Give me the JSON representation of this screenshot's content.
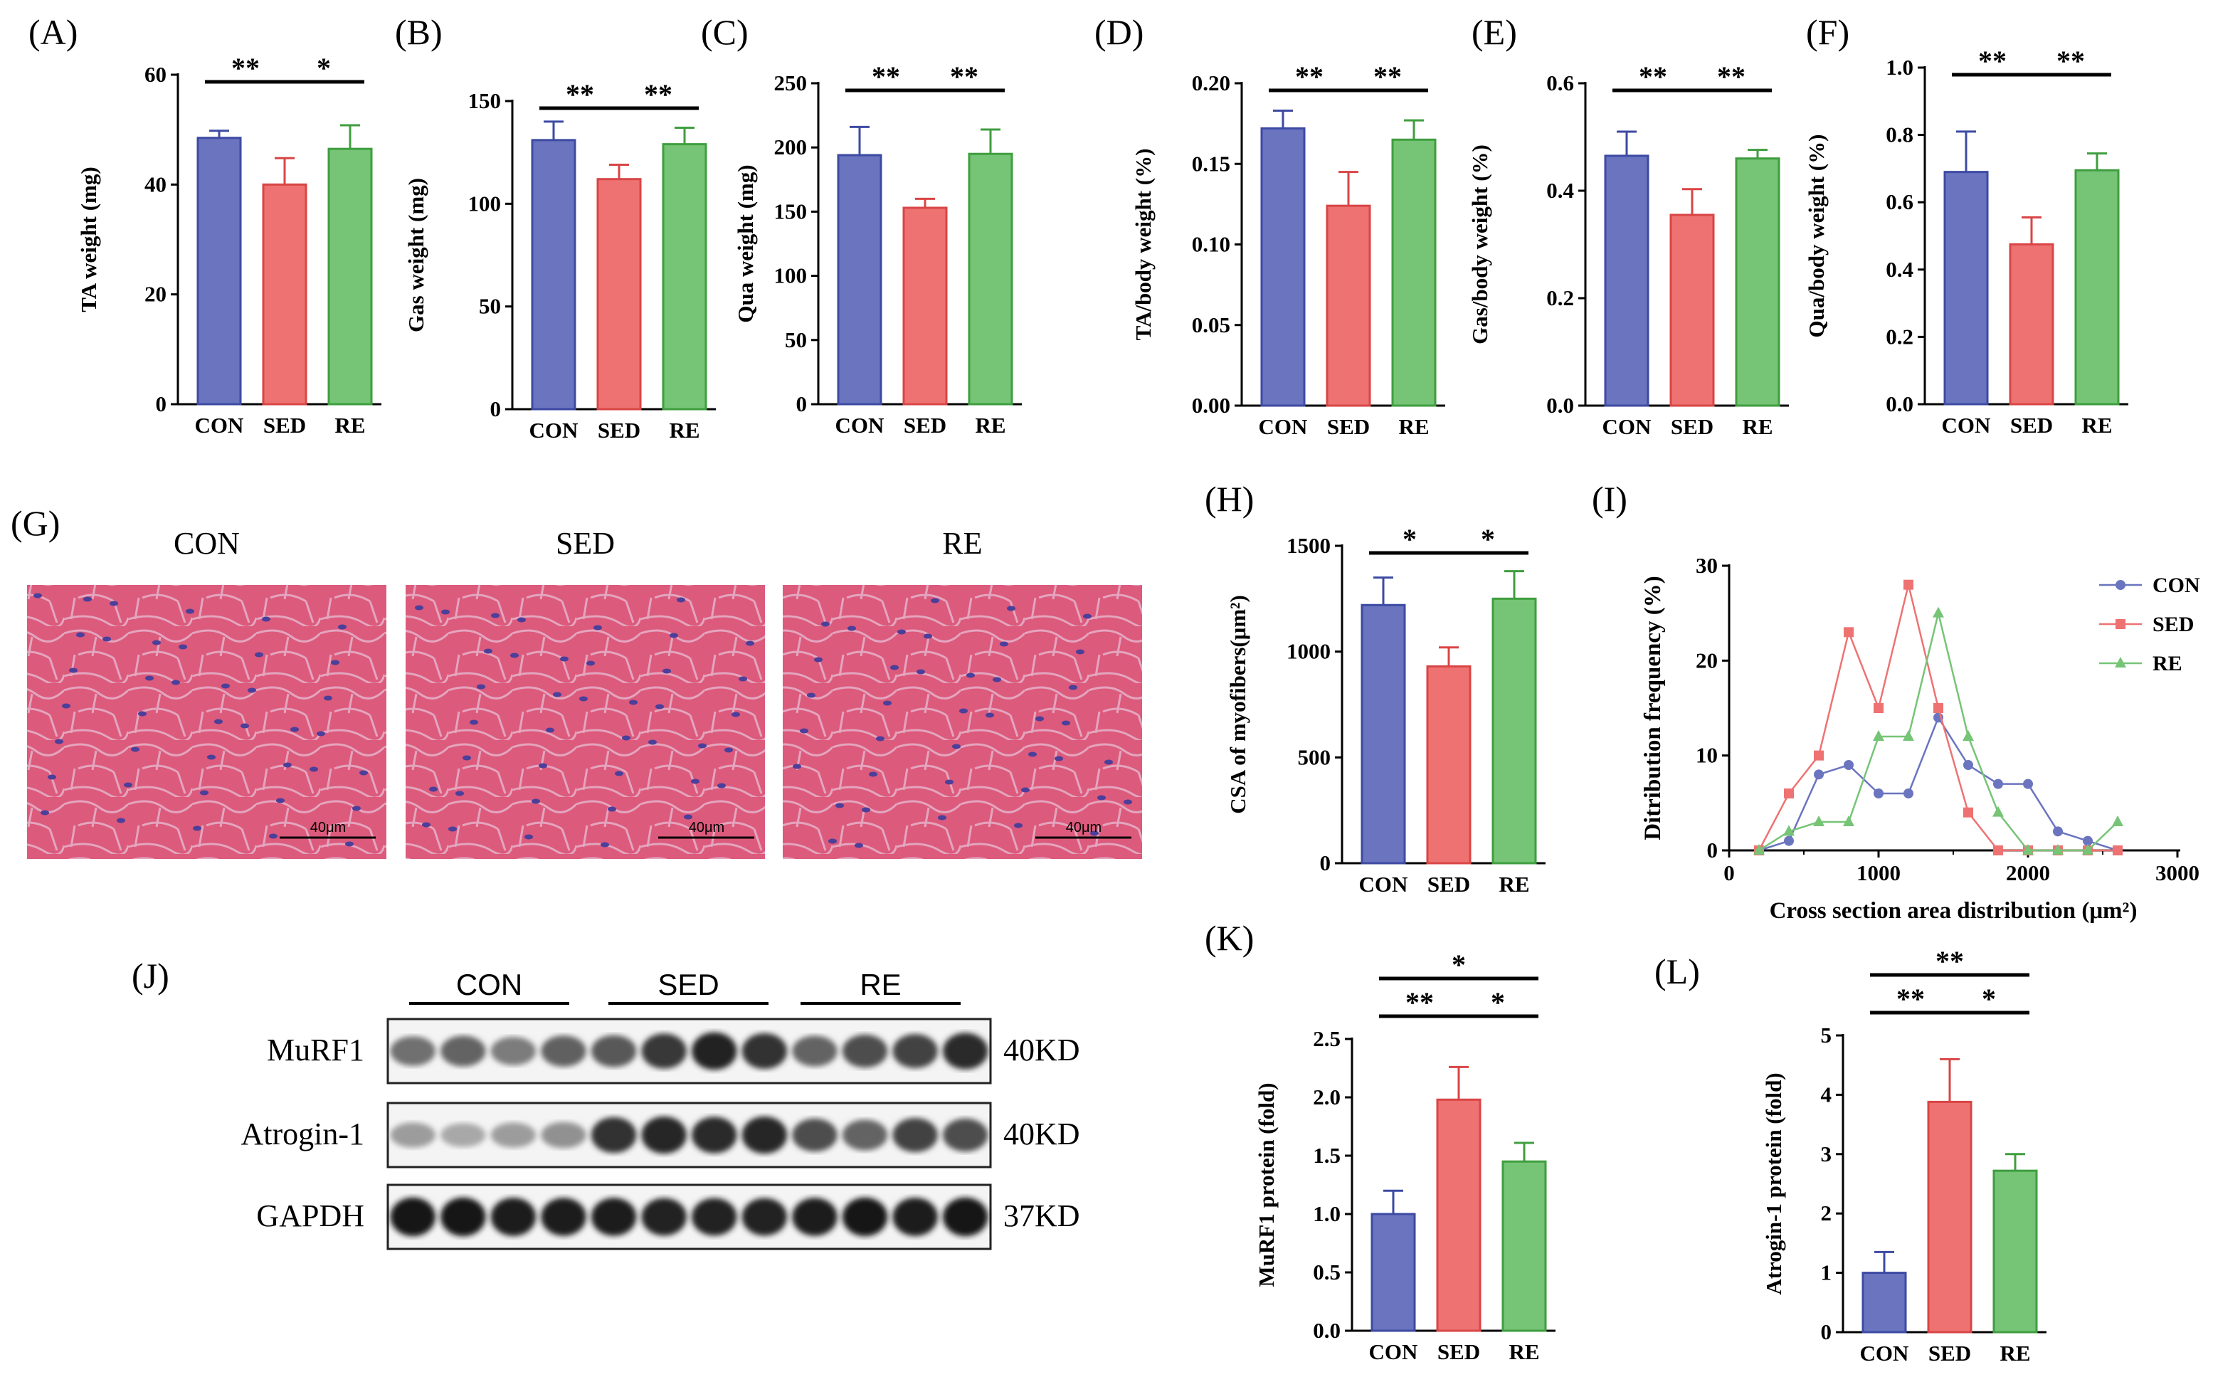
{
  "colors": {
    "con": "#6a74bf",
    "sed": "#ee7272",
    "re": "#76c476",
    "axis": "#000000"
  },
  "groups": [
    "CON",
    "SED",
    "RE"
  ],
  "bar_panels": [
    {
      "id": "A",
      "label": "(A)",
      "ylabel": "TA weight (mg)",
      "ticks": [
        "0",
        "20",
        "40",
        "60"
      ],
      "ylim": [
        0,
        60
      ],
      "values": [
        48.5,
        40,
        46.5
      ],
      "errors": [
        1.3,
        4.8,
        4.3
      ],
      "sig": [
        {
          "pair": [
            0,
            1
          ],
          "text": "**"
        },
        {
          "pair": [
            1,
            2
          ],
          "text": "*"
        }
      ]
    },
    {
      "id": "B",
      "label": "(B)",
      "ylabel": "Gas weight (mg)",
      "ticks": [
        "0",
        "50",
        "100",
        "150"
      ],
      "ylim": [
        0,
        150
      ],
      "values": [
        131,
        112,
        129
      ],
      "errors": [
        9,
        7,
        8
      ],
      "sig": [
        {
          "pair": [
            0,
            1
          ],
          "text": "**"
        },
        {
          "pair": [
            1,
            2
          ],
          "text": "**"
        }
      ]
    },
    {
      "id": "C",
      "label": "(C)",
      "ylabel": "Qua weight (mg)",
      "ticks": [
        "0",
        "50",
        "100",
        "150",
        "200",
        "250"
      ],
      "ylim": [
        0,
        250
      ],
      "values": [
        194,
        153,
        195
      ],
      "errors": [
        22,
        7,
        19
      ],
      "sig": [
        {
          "pair": [
            0,
            1
          ],
          "text": "**"
        },
        {
          "pair": [
            1,
            2
          ],
          "text": "**"
        }
      ]
    },
    {
      "id": "D",
      "label": "(D)",
      "ylabel": "TA/body weight (%)",
      "ticks": [
        "0.00",
        "0.05",
        "0.10",
        "0.15",
        "0.20"
      ],
      "ylim": [
        0,
        0.2
      ],
      "values": [
        0.172,
        0.124,
        0.165
      ],
      "errors": [
        0.011,
        0.021,
        0.012
      ],
      "sig": [
        {
          "pair": [
            0,
            1
          ],
          "text": "**"
        },
        {
          "pair": [
            1,
            2
          ],
          "text": "**"
        }
      ]
    },
    {
      "id": "E",
      "label": "(E)",
      "ylabel": "Gas/body weight (%)",
      "ticks": [
        "0.0",
        "0.2",
        "0.4",
        "0.6"
      ],
      "ylim": [
        0,
        0.6
      ],
      "values": [
        0.465,
        0.355,
        0.46
      ],
      "errors": [
        0.045,
        0.048,
        0.016
      ],
      "sig": [
        {
          "pair": [
            0,
            1
          ],
          "text": "**"
        },
        {
          "pair": [
            1,
            2
          ],
          "text": "**"
        }
      ]
    },
    {
      "id": "F",
      "label": "(F)",
      "ylabel": "Qua/body weight (%)",
      "ticks": [
        "0.0",
        "0.2",
        "0.4",
        "0.6",
        "0.8",
        "1.0"
      ],
      "ylim": [
        0,
        1.0
      ],
      "values": [
        0.69,
        0.475,
        0.695
      ],
      "errors": [
        0.12,
        0.08,
        0.05
      ],
      "sig": [
        {
          "pair": [
            0,
            1
          ],
          "text": "**"
        },
        {
          "pair": [
            1,
            2
          ],
          "text": "**"
        }
      ]
    },
    {
      "id": "H",
      "label": "(H)",
      "ylabel": "CSA of myofibers(μm²)",
      "ticks": [
        "0",
        "500",
        "1000",
        "1500"
      ],
      "ylim": [
        0,
        1500
      ],
      "values": [
        1220,
        930,
        1250
      ],
      "errors": [
        130,
        90,
        130
      ],
      "sig": [
        {
          "pair": [
            0,
            1
          ],
          "text": "*"
        },
        {
          "pair": [
            1,
            2
          ],
          "text": "*"
        }
      ]
    },
    {
      "id": "K",
      "label": "(K)",
      "ylabel": "MuRF1 protein (fold)",
      "ticks": [
        "0.0",
        "0.5",
        "1.0",
        "1.5",
        "2.0",
        "2.5"
      ],
      "ylim": [
        0,
        2.5
      ],
      "values": [
        1.0,
        1.98,
        1.45
      ],
      "errors": [
        0.2,
        0.28,
        0.16
      ],
      "sig": [
        {
          "pair": [
            0,
            2
          ],
          "text": "*"
        },
        {
          "pair": [
            0,
            1
          ],
          "text": "**"
        },
        {
          "pair": [
            1,
            2
          ],
          "text": "*"
        }
      ]
    },
    {
      "id": "L",
      "label": "(L)",
      "ylabel": "Atrogin-1 protein (fold)",
      "ticks": [
        "0",
        "1",
        "2",
        "3",
        "4",
        "5"
      ],
      "ylim": [
        0,
        5
      ],
      "values": [
        1.0,
        3.88,
        2.72
      ],
      "errors": [
        0.35,
        0.72,
        0.28
      ],
      "sig": [
        {
          "pair": [
            0,
            2
          ],
          "text": "**"
        },
        {
          "pair": [
            0,
            1
          ],
          "text": "**"
        },
        {
          "pair": [
            1,
            2
          ],
          "text": "*"
        }
      ]
    }
  ],
  "chart_data": {
    "type": "line",
    "label": "(I)",
    "xlabel": "Cross section area distribution (μm²)",
    "ylabel": "Ditribution frequency (%)",
    "xlim": [
      0,
      3000
    ],
    "ylim": [
      0,
      30
    ],
    "xticks": [
      "0",
      "1000",
      "2000",
      "3000"
    ],
    "yticks": [
      "0",
      "10",
      "20",
      "30"
    ],
    "legend_position": "top-right",
    "series": [
      {
        "name": "CON",
        "marker": "circle",
        "x": [
          200,
          400,
          600,
          800,
          1000,
          1200,
          1400,
          1600,
          1800,
          2000,
          2200,
          2400,
          2600
        ],
        "y": [
          0,
          1,
          8,
          9,
          6,
          6,
          14,
          9,
          7,
          7,
          2,
          1,
          0
        ]
      },
      {
        "name": "SED",
        "marker": "square",
        "x": [
          200,
          400,
          600,
          800,
          1000,
          1200,
          1400,
          1600,
          1800,
          2000,
          2200,
          2400,
          2600
        ],
        "y": [
          0,
          6,
          10,
          23,
          15,
          28,
          15,
          4,
          0,
          0,
          0,
          0,
          0
        ]
      },
      {
        "name": "RE",
        "marker": "triangle",
        "x": [
          200,
          400,
          600,
          800,
          1000,
          1200,
          1400,
          1600,
          1800,
          2000,
          2200,
          2400,
          2600
        ],
        "y": [
          0,
          2,
          3,
          3,
          12,
          12,
          25,
          12,
          4,
          0,
          0,
          0,
          3
        ]
      }
    ]
  },
  "histology": {
    "label": "(G)",
    "panels": [
      {
        "title": "CON",
        "scale": "40μm"
      },
      {
        "title": "SED",
        "scale": "40μm"
      },
      {
        "title": "RE",
        "scale": "40μm"
      }
    ]
  },
  "western": {
    "label": "(J)",
    "groups": [
      "CON",
      "SED",
      "RE"
    ],
    "rows": [
      {
        "name": "MuRF1",
        "size": "40KD",
        "intensities": [
          0.55,
          0.6,
          0.5,
          0.62,
          0.65,
          0.8,
          0.9,
          0.82,
          0.6,
          0.7,
          0.75,
          0.85
        ]
      },
      {
        "name": "Atrogin-1",
        "size": "40KD",
        "intensities": [
          0.35,
          0.3,
          0.35,
          0.4,
          0.82,
          0.88,
          0.85,
          0.88,
          0.7,
          0.6,
          0.75,
          0.7
        ]
      },
      {
        "name": "GAPDH",
        "size": "37KD",
        "intensities": [
          0.95,
          0.95,
          0.93,
          0.92,
          0.92,
          0.9,
          0.9,
          0.9,
          0.92,
          0.95,
          0.93,
          0.95
        ]
      }
    ]
  }
}
